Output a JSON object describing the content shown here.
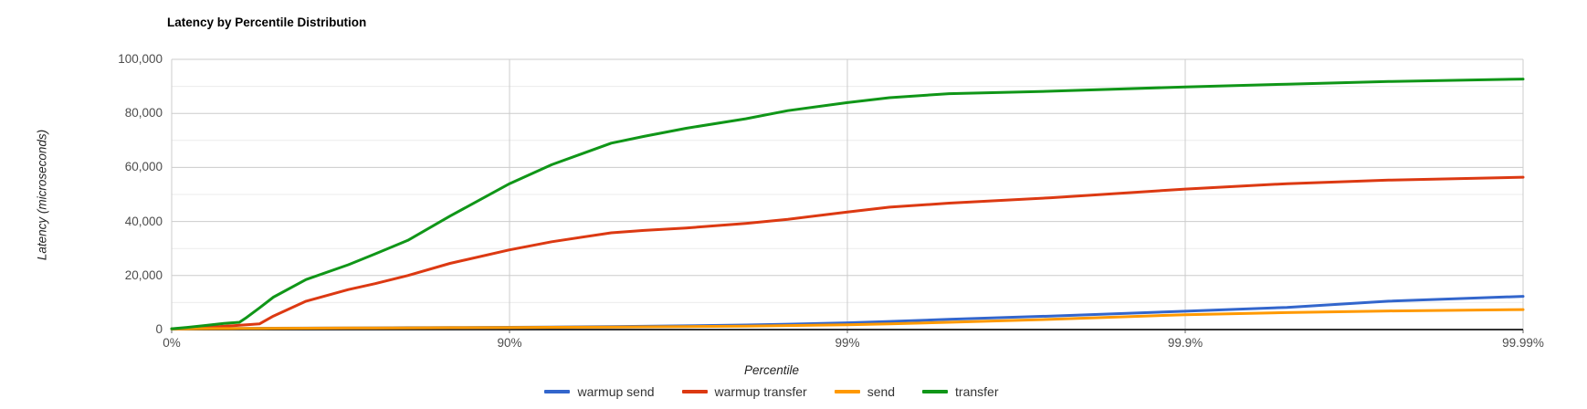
{
  "chart_data": {
    "type": "line",
    "title": "Latency by Percentile Distribution",
    "xlabel": "Percentile",
    "ylabel": "Latency (microseconds)",
    "x_scale": "log-percentile",
    "x_tick_labels": [
      "0%",
      "90%",
      "99%",
      "99.9%",
      "99.99%"
    ],
    "x_tick_percentiles": [
      0,
      90,
      99,
      99.9,
      99.99
    ],
    "y_ticks": [
      0,
      20000,
      40000,
      60000,
      80000,
      100000
    ],
    "y_tick_labels": [
      "0",
      "20,000",
      "40,000",
      "60,000",
      "80,000",
      "100,000"
    ],
    "y_minor_ticks": [
      10000,
      30000,
      50000,
      70000,
      90000
    ],
    "ylim": [
      0,
      100000
    ],
    "grid": true,
    "legend_position": "bottom",
    "percentiles": [
      0,
      10,
      20,
      30,
      37,
      40,
      45,
      50,
      60,
      70,
      75,
      80,
      85,
      90,
      92.5,
      95,
      96,
      97,
      98,
      98.5,
      99,
      99.25,
      99.5,
      99.75,
      99.9,
      99.95,
      99.975,
      99.99
    ],
    "series": [
      {
        "name": "warmup send",
        "color": "#3366CC",
        "values": [
          200,
          300,
          350,
          400,
          420,
          450,
          480,
          500,
          550,
          600,
          650,
          700,
          750,
          850,
          950,
          1100,
          1200,
          1400,
          1700,
          2000,
          2500,
          3000,
          3800,
          5000,
          6800,
          8200,
          10500,
          12300
        ]
      },
      {
        "name": "warmup transfer",
        "color": "#DC3912",
        "values": [
          300,
          500,
          800,
          1200,
          1600,
          1800,
          2100,
          5000,
          10500,
          14800,
          17000,
          20000,
          24500,
          29500,
          32500,
          35800,
          36700,
          37600,
          39300,
          40800,
          43500,
          45300,
          46800,
          48800,
          52000,
          54000,
          55300,
          56400
        ]
      },
      {
        "name": "send",
        "color": "#FF9900",
        "values": [
          200,
          280,
          330,
          380,
          400,
          420,
          450,
          480,
          520,
          560,
          600,
          650,
          700,
          780,
          850,
          950,
          1000,
          1100,
          1300,
          1500,
          1800,
          2100,
          2700,
          3800,
          5500,
          6300,
          6900,
          7400
        ]
      },
      {
        "name": "transfer",
        "color": "#109618",
        "values": [
          300,
          800,
          1500,
          2300,
          2700,
          4500,
          8000,
          12000,
          18500,
          24000,
          28000,
          33000,
          42000,
          54000,
          61000,
          69000,
          71500,
          74500,
          78000,
          81000,
          84000,
          85800,
          87300,
          88200,
          89800,
          90800,
          91800,
          92700
        ]
      }
    ],
    "colors": {
      "background": "#ffffff",
      "gridline_major": "#cccccc",
      "gridline_minor": "#ebebeb",
      "axis_line": "#333333",
      "tick_label": "#4d4d4d",
      "axis_title": "#222222",
      "title": "#000000"
    }
  }
}
